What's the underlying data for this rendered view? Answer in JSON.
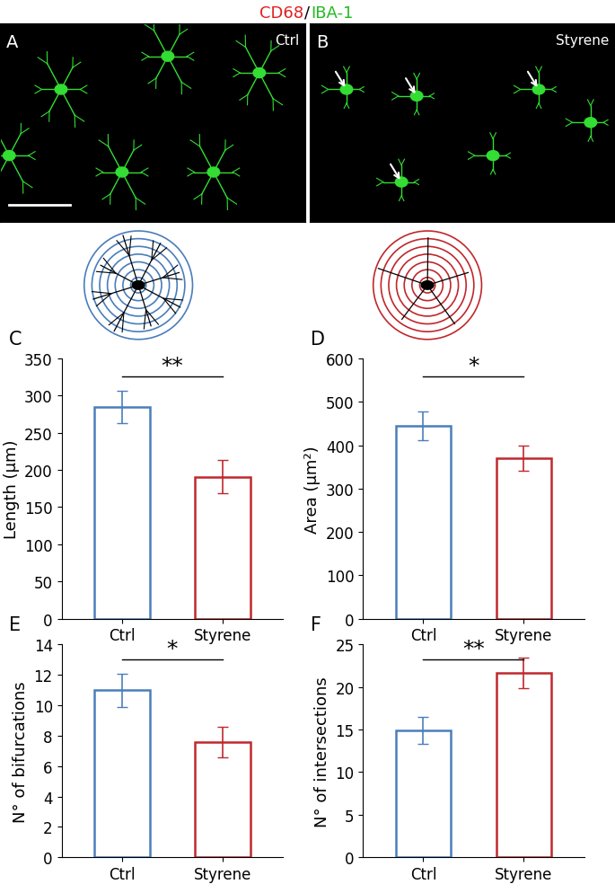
{
  "title_parts": [
    {
      "text": "CD68",
      "color": "#e02020"
    },
    {
      "text": "/",
      "color": "#000000"
    },
    {
      "text": "IBA-1",
      "color": "#22bb22"
    }
  ],
  "images": [
    {
      "panel": "A",
      "label": "Ctrl"
    },
    {
      "panel": "B",
      "label": "Styrene"
    }
  ],
  "schematics": [
    {
      "panel": "a1",
      "color": "#4a7ebb"
    },
    {
      "panel": "b1",
      "color": "#c0282d"
    }
  ],
  "chart_data": [
    {
      "type": "bar",
      "panel_label": "C",
      "categories": [
        "Ctrl",
        "Styrene"
      ],
      "values": [
        285,
        191
      ],
      "errors": [
        22,
        22
      ],
      "colors": [
        "#4a7ebb",
        "#c0282d"
      ],
      "y_label": "Length (µm)",
      "ylim": [
        0,
        350
      ],
      "yticks": [
        0,
        50,
        100,
        150,
        200,
        250,
        300,
        350
      ],
      "significance": "**"
    },
    {
      "type": "bar",
      "panel_label": "D",
      "categories": [
        "Ctrl",
        "Styrene"
      ],
      "values": [
        445,
        370
      ],
      "errors": [
        33,
        30
      ],
      "colors": [
        "#4a7ebb",
        "#c0282d"
      ],
      "y_label": "Area (µm²)",
      "ylim": [
        0,
        600
      ],
      "yticks": [
        0,
        100,
        200,
        300,
        400,
        500,
        600
      ],
      "significance": "*"
    },
    {
      "type": "bar",
      "panel_label": "E",
      "categories": [
        "Ctrl",
        "Styrene"
      ],
      "values": [
        11,
        7.6
      ],
      "errors": [
        1.1,
        1.0
      ],
      "colors": [
        "#4a7ebb",
        "#c0282d"
      ],
      "y_label": "N° of bifurcations",
      "ylim": [
        0,
        14
      ],
      "yticks": [
        0,
        2,
        4,
        6,
        8,
        10,
        12,
        14
      ],
      "significance": "*"
    },
    {
      "type": "bar",
      "panel_label": "F",
      "categories": [
        "Ctrl",
        "Styrene"
      ],
      "values": [
        14.9,
        21.7
      ],
      "errors": [
        1.6,
        1.8
      ],
      "colors": [
        "#4a7ebb",
        "#c0282d"
      ],
      "y_label": "N° of intersections",
      "ylim": [
        0,
        25
      ],
      "yticks": [
        0,
        5,
        10,
        15,
        20,
        25
      ],
      "significance": "**"
    }
  ]
}
